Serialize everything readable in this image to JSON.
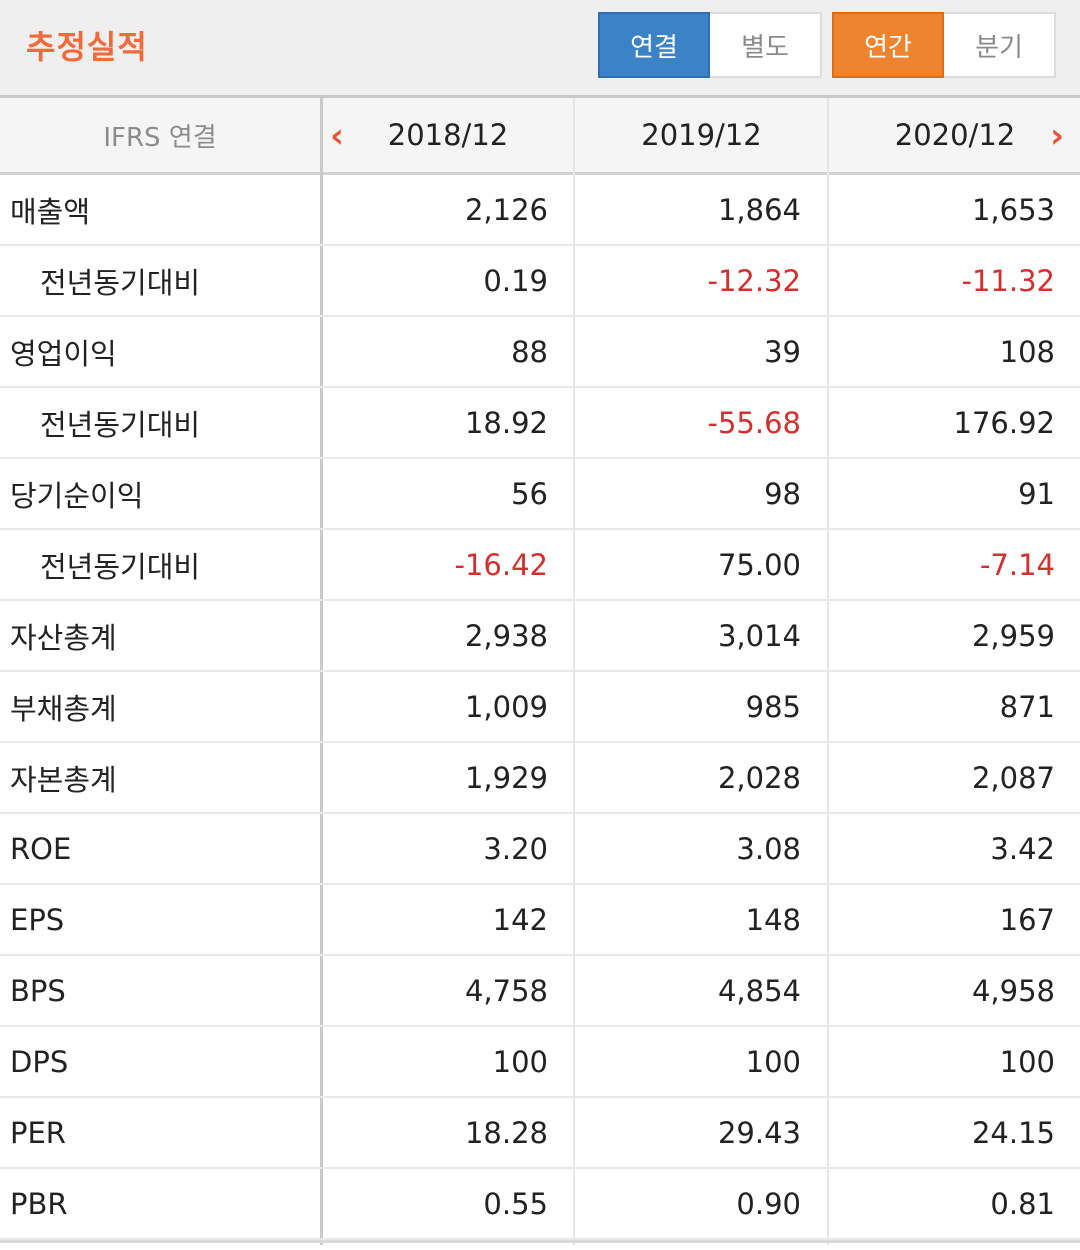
{
  "header": {
    "title": "추정실적",
    "toggle1": {
      "options": [
        "연결",
        "별도"
      ],
      "selected": "연결"
    },
    "toggle2": {
      "options": [
        "연간",
        "분기"
      ],
      "selected": "연간"
    }
  },
  "colors": {
    "title": "#f26a3b",
    "blue": "#3c82c6",
    "orange": "#ee8430",
    "negative": "#d32f2f"
  },
  "table": {
    "header_label": "IFRS 연결",
    "years": [
      "2018/12",
      "2019/12",
      "2020/12"
    ],
    "rows": [
      {
        "label": "매출액",
        "sub": false,
        "values": [
          "2,126",
          "1,864",
          "1,653"
        ]
      },
      {
        "label": "전년동기대비",
        "sub": true,
        "values": [
          "0.19",
          "-12.32",
          "-11.32"
        ]
      },
      {
        "label": "영업이익",
        "sub": false,
        "values": [
          "88",
          "39",
          "108"
        ]
      },
      {
        "label": "전년동기대비",
        "sub": true,
        "values": [
          "18.92",
          "-55.68",
          "176.92"
        ]
      },
      {
        "label": "당기순이익",
        "sub": false,
        "values": [
          "56",
          "98",
          "91"
        ]
      },
      {
        "label": "전년동기대비",
        "sub": true,
        "values": [
          "-16.42",
          "75.00",
          "-7.14"
        ]
      },
      {
        "label": "자산총계",
        "sub": false,
        "values": [
          "2,938",
          "3,014",
          "2,959"
        ]
      },
      {
        "label": "부채총계",
        "sub": false,
        "values": [
          "1,009",
          "985",
          "871"
        ]
      },
      {
        "label": "자본총계",
        "sub": false,
        "values": [
          "1,929",
          "2,028",
          "2,087"
        ]
      },
      {
        "label": "ROE",
        "sub": false,
        "values": [
          "3.20",
          "3.08",
          "3.42"
        ]
      },
      {
        "label": "EPS",
        "sub": false,
        "values": [
          "142",
          "148",
          "167"
        ]
      },
      {
        "label": "BPS",
        "sub": false,
        "values": [
          "4,758",
          "4,854",
          "4,958"
        ]
      },
      {
        "label": "DPS",
        "sub": false,
        "values": [
          "100",
          "100",
          "100"
        ]
      },
      {
        "label": "PER",
        "sub": false,
        "values": [
          "18.28",
          "29.43",
          "24.15"
        ]
      },
      {
        "label": "PBR",
        "sub": false,
        "values": [
          "0.55",
          "0.90",
          "0.81"
        ]
      }
    ]
  }
}
